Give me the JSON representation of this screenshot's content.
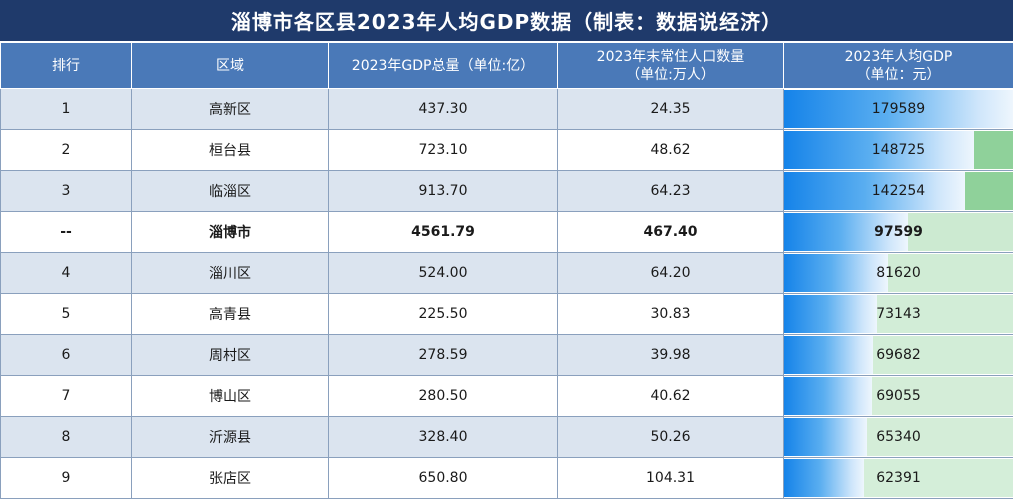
{
  "title": "淄博市各区县2023年人均GDP数据（制表：数据说经济）",
  "headers": {
    "rank": "排行",
    "region": "区域",
    "gdp": "2023年GDP总量（单位:亿）",
    "pop": "2023年末常住人口数量\n（单位:万人）",
    "per_capita": "2023年人均GDP\n（单位：元）"
  },
  "rows": [
    {
      "rank": "1",
      "region": "高新区",
      "gdp": "437.30",
      "pop": "24.35",
      "per_capita": "179589",
      "per_capita_value": 179589
    },
    {
      "rank": "2",
      "region": "桓台县",
      "gdp": "723.10",
      "pop": "48.62",
      "per_capita": "148725",
      "per_capita_value": 148725
    },
    {
      "rank": "3",
      "region": "临淄区",
      "gdp": "913.70",
      "pop": "64.23",
      "per_capita": "142254",
      "per_capita_value": 142254
    },
    {
      "rank": "--",
      "region": "淄博市",
      "gdp": "4561.79",
      "pop": "467.40",
      "per_capita": "97599",
      "per_capita_value": 97599,
      "total": true
    },
    {
      "rank": "4",
      "region": "淄川区",
      "gdp": "524.00",
      "pop": "64.20",
      "per_capita": "81620",
      "per_capita_value": 81620
    },
    {
      "rank": "5",
      "region": "高青县",
      "gdp": "225.50",
      "pop": "30.83",
      "per_capita": "73143",
      "per_capita_value": 73143
    },
    {
      "rank": "6",
      "region": "周村区",
      "gdp": "278.59",
      "pop": "39.98",
      "per_capita": "69682",
      "per_capita_value": 69682
    },
    {
      "rank": "7",
      "region": "博山区",
      "gdp": "280.50",
      "pop": "40.62",
      "per_capita": "69055",
      "per_capita_value": 69055
    },
    {
      "rank": "8",
      "region": "沂源县",
      "gdp": "328.40",
      "pop": "50.26",
      "per_capita": "65340",
      "per_capita_value": 65340
    },
    {
      "rank": "9",
      "region": "张店区",
      "gdp": "650.80",
      "pop": "104.31",
      "per_capita": "62391",
      "per_capita_value": 62391
    }
  ],
  "colors": {
    "title_bg": "#1f3a6b",
    "header_bg": "#4a79b8",
    "row_alt": "#dbe4ef",
    "bar_blue": "#1583e9",
    "bar_green": "#8fd19a"
  }
}
